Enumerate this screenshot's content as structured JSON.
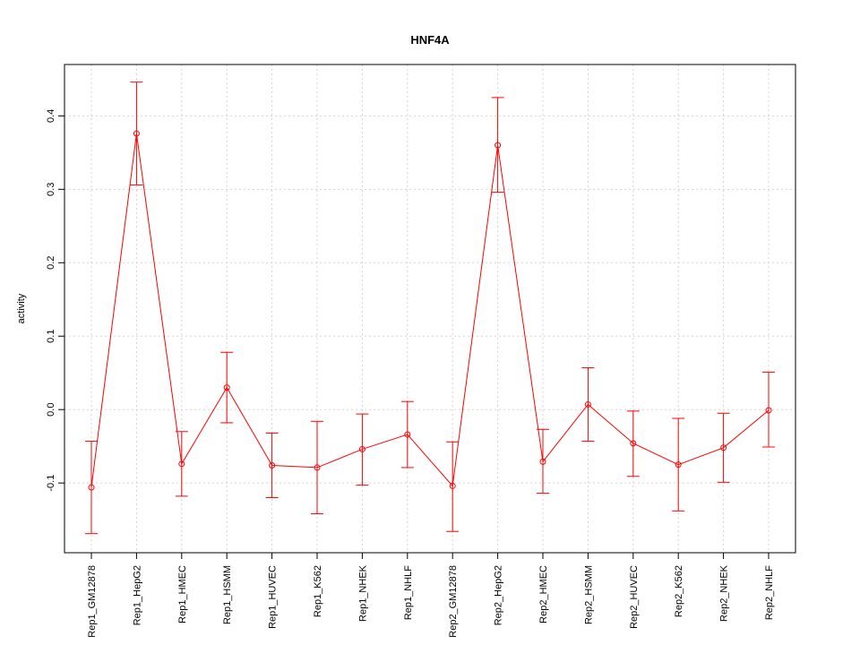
{
  "chart_data": {
    "type": "line",
    "title": "HNF4A",
    "xlabel": "",
    "ylabel": "activity",
    "ylim": [
      -0.195,
      0.47
    ],
    "yticks": [
      -0.1,
      0.0,
      0.1,
      0.2,
      0.3,
      0.4
    ],
    "ytick_labels": [
      "-0.1",
      "0.0",
      "0.1",
      "0.2",
      "0.3",
      "0.4"
    ],
    "grid": true,
    "colors": {
      "series": "#ff0000",
      "grid": "#d3d3d3",
      "axis": "#000000"
    },
    "categories": [
      "Rep1_GM12878",
      "Rep1_HepG2",
      "Rep1_HMEC",
      "Rep1_HSMM",
      "Rep1_HUVEC",
      "Rep1_K562",
      "Rep1_NHEK",
      "Rep1_NHLF",
      "Rep2_GM12878",
      "Rep2_HepG2",
      "Rep2_HMEC",
      "Rep2_HSMM",
      "Rep2_HUVEC",
      "Rep2_K562",
      "Rep2_NHEK",
      "Rep2_NHLF"
    ],
    "series": [
      {
        "name": "HNF4A",
        "values": [
          -0.106,
          0.376,
          -0.074,
          0.03,
          -0.076,
          -0.079,
          -0.054,
          -0.034,
          -0.104,
          0.36,
          -0.071,
          0.007,
          -0.046,
          -0.075,
          -0.052,
          -0.001
        ],
        "lower": [
          -0.169,
          0.306,
          -0.118,
          -0.018,
          -0.12,
          -0.142,
          -0.103,
          -0.079,
          -0.166,
          0.296,
          -0.114,
          -0.043,
          -0.091,
          -0.138,
          -0.099,
          -0.051
        ],
        "upper": [
          -0.043,
          0.446,
          -0.03,
          0.078,
          -0.032,
          -0.016,
          -0.006,
          0.011,
          -0.044,
          0.425,
          -0.027,
          0.057,
          -0.002,
          -0.012,
          -0.005,
          0.051
        ]
      }
    ]
  }
}
